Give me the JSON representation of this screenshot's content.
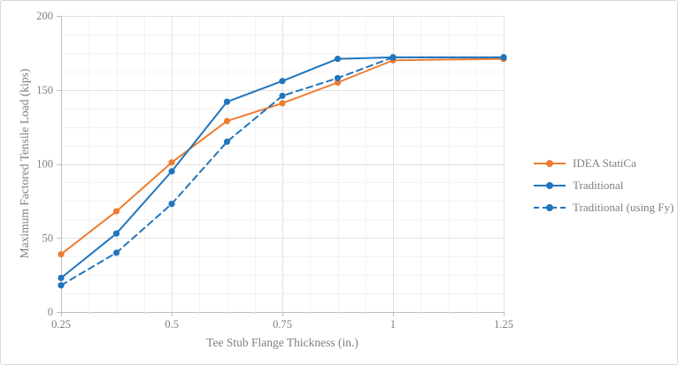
{
  "chart_data": {
    "type": "line",
    "title": "",
    "xlabel": "Tee Stub Flange Thickness (in.)",
    "ylabel": "Maximum Factored Tensile Load (kips)",
    "x": [
      0.25,
      0.375,
      0.5,
      0.625,
      0.75,
      0.875,
      1,
      1.25
    ],
    "series": [
      {
        "name": "IDEA StatiCa",
        "color": "#ED7D31",
        "style": "solid",
        "marker": "circle",
        "values": [
          39,
          68,
          101,
          129,
          141,
          155,
          170,
          171
        ]
      },
      {
        "name": "Traditional",
        "color": "#2175BC",
        "style": "solid",
        "marker": "circle",
        "values": [
          23,
          53,
          95,
          142,
          156,
          171,
          172,
          172
        ]
      },
      {
        "name": "Traditional (using Fy)",
        "color": "#2175BC",
        "style": "dashed",
        "marker": "circle",
        "values": [
          18,
          40,
          73,
          115,
          146,
          158,
          172,
          172
        ]
      }
    ],
    "xlim": [
      0.25,
      1.25
    ],
    "ylim": [
      0,
      200
    ],
    "x_major_unit": 0.25,
    "x_minor_unit": 0.0625,
    "y_major_unit": 50,
    "y_minor_unit": 12.5,
    "x_tick_labels": [
      "0.25",
      "0.5",
      "0.75",
      "1",
      "1.25"
    ],
    "y_tick_labels": [
      "0",
      "50",
      "100",
      "150",
      "200"
    ],
    "grid": "major+minor",
    "legend_position": "right",
    "colors": {
      "axis_line": "#bfbfbf",
      "major_grid": "#e2e2e2",
      "minor_grid": "#f3f3f3",
      "label_text": "#7f7f7f"
    }
  }
}
